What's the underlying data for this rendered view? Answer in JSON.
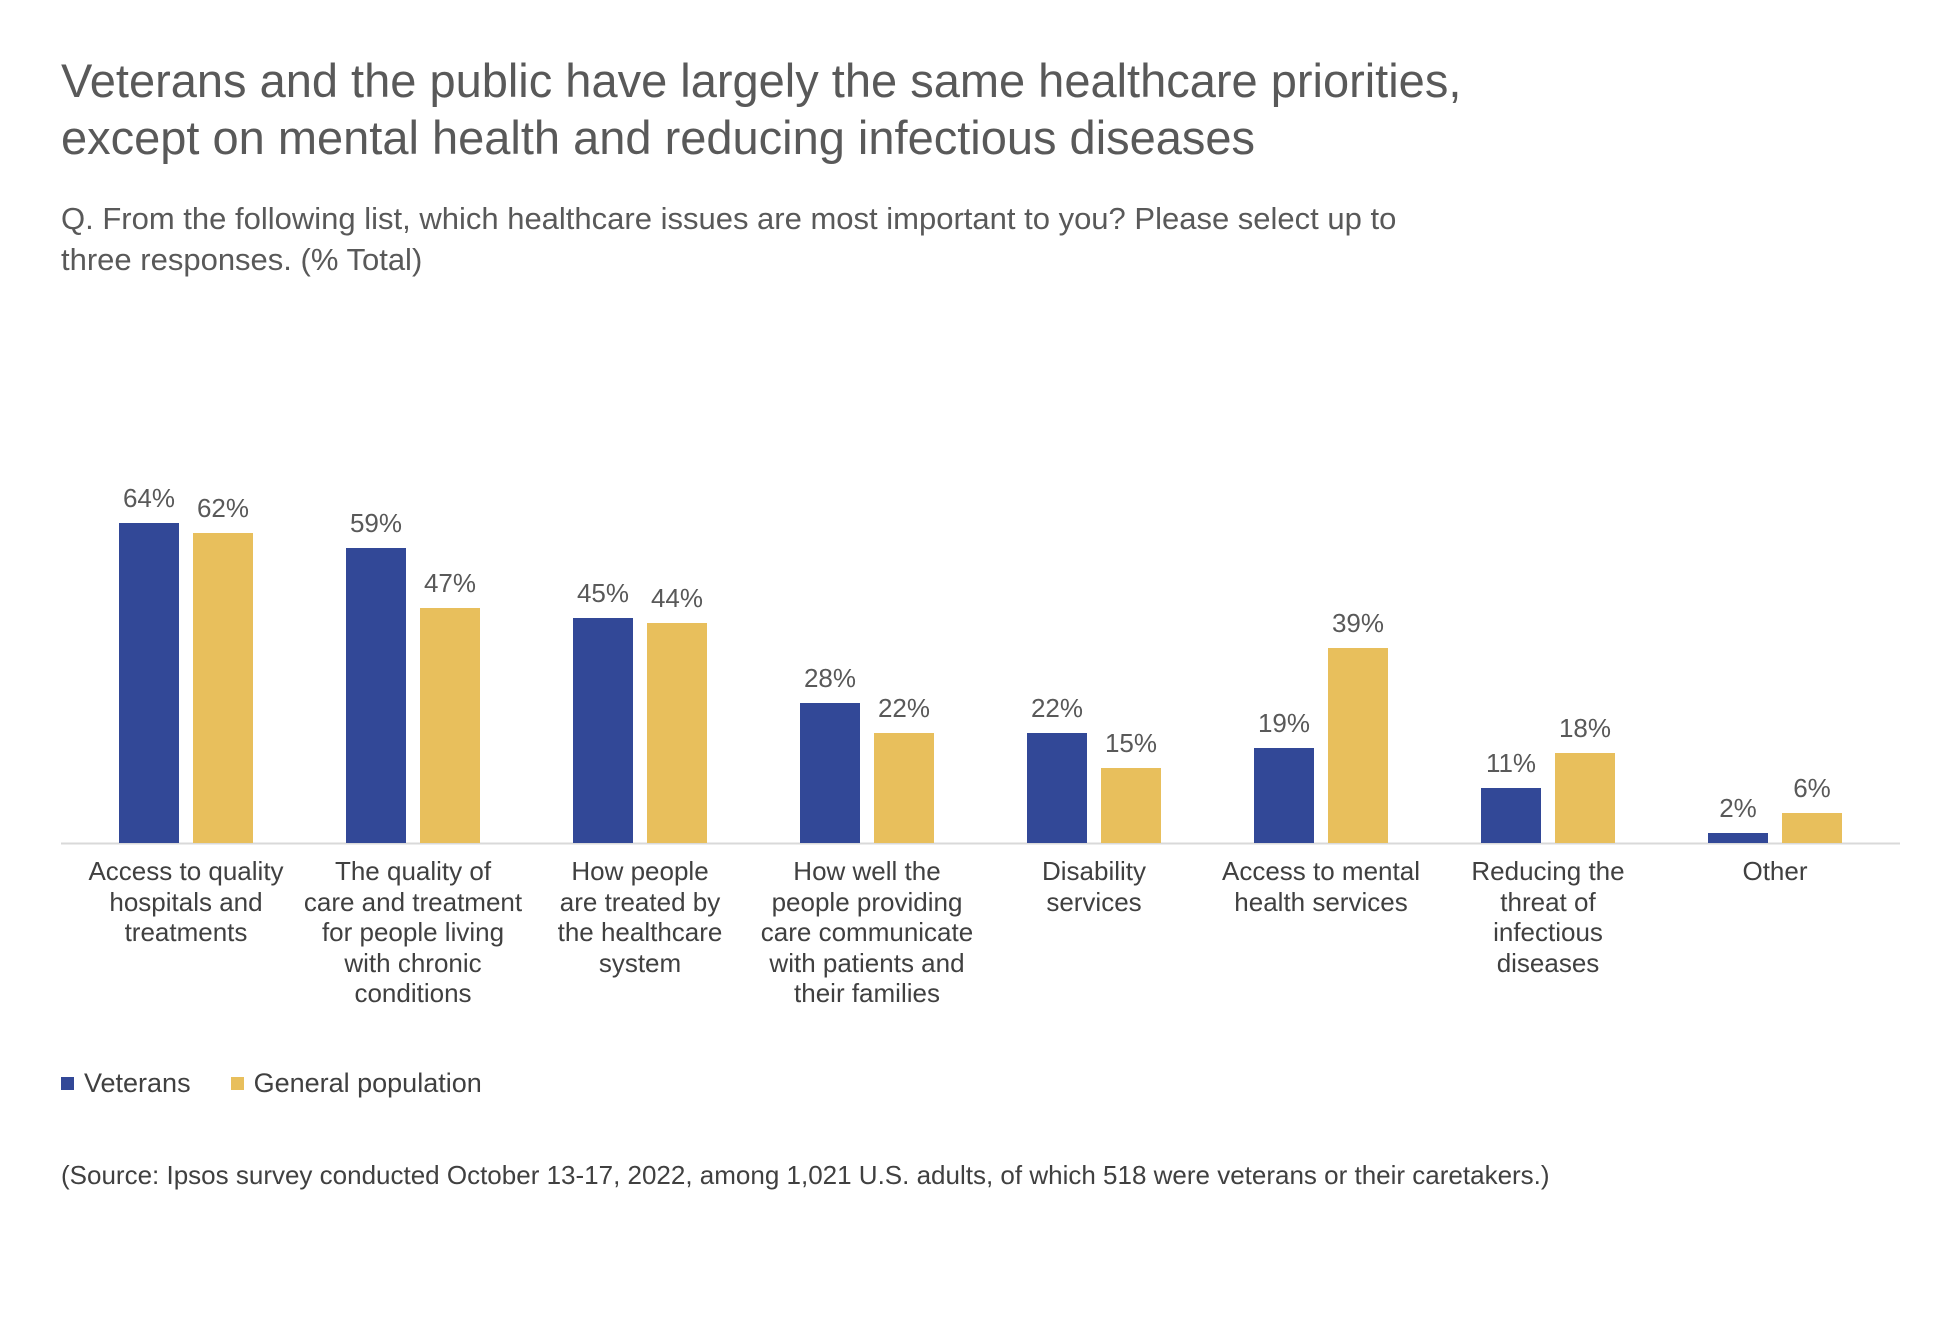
{
  "title_line1": "Veterans and the public have largely the same healthcare priorities,",
  "title_line2": "except on mental health and reducing infectious diseases",
  "subtitle_line1": "Q. From the following list, which healthcare issues are most important to you? Please select up to",
  "subtitle_line2": "three responses. (% Total)",
  "source": "(Source: Ipsos survey conducted October 13-17, 2022, among 1,021 U.S. adults, of which 518 were veterans or their caretakers.)",
  "colors": {
    "veterans": "#324897",
    "general": "#e8bf5c",
    "axis": "#d9d9d9"
  },
  "chart_data": {
    "type": "bar",
    "title": "Veterans and the public have largely the same healthcare priorities, except on mental health and reducing infectious diseases",
    "ylabel": "",
    "xlabel": "",
    "ylim": [
      0,
      70
    ],
    "grid": false,
    "legend": "bottom-left",
    "categories": [
      [
        "Access to quality",
        "hospitals and",
        "treatments"
      ],
      [
        "The quality of",
        "care and treatment",
        "for people living",
        "with chronic",
        "conditions"
      ],
      [
        "How people",
        "are treated by",
        "the healthcare",
        "system"
      ],
      [
        "How well the",
        "people providing",
        "care communicate",
        "with patients and",
        "their families"
      ],
      [
        "Disability",
        "services"
      ],
      [
        "Access to mental",
        "health services"
      ],
      [
        "Reducing the",
        "threat of",
        "infectious",
        "diseases"
      ],
      [
        "Other"
      ]
    ],
    "series": [
      {
        "name": "Veterans",
        "values": [
          64,
          59,
          45,
          28,
          22,
          19,
          11,
          2
        ],
        "labels": [
          "64%",
          "59%",
          "45%",
          "28%",
          "22%",
          "19%",
          "11%",
          "2%"
        ]
      },
      {
        "name": "General population",
        "values": [
          62,
          47,
          44,
          22,
          15,
          39,
          18,
          6
        ],
        "labels": [
          "62%",
          "47%",
          "44%",
          "22%",
          "15%",
          "39%",
          "18%",
          "6%"
        ]
      }
    ]
  }
}
